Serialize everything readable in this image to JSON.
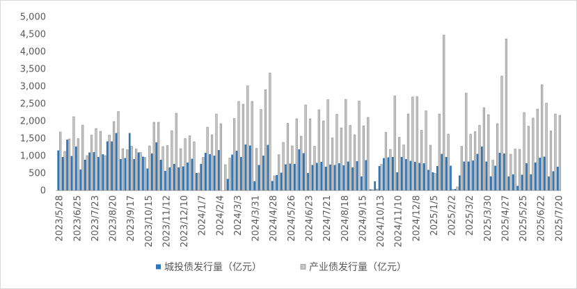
{
  "chart_data": {
    "type": "bar",
    "categories": [
      "2023/5/28",
      "",
      "",
      "",
      "2023/6/25",
      "",
      "",
      "",
      "2023/7/23",
      "",
      "",
      "",
      "2023/8/20",
      "",
      "",
      "",
      "2023/9/17",
      "",
      "",
      "",
      "2023/10/15",
      "",
      "",
      "",
      "2023/11/12",
      "",
      "",
      "",
      "2023/12/10",
      "",
      "",
      "",
      "2024/1/7",
      "",
      "",
      "",
      "2024/2/4",
      "",
      "",
      "",
      "2024/3/3",
      "",
      "",
      "",
      "2024/3/31",
      "",
      "",
      "",
      "2024/4/28",
      "",
      "",
      "",
      "2024/5/26",
      "",
      "",
      "",
      "2024/6/23",
      "",
      "",
      "",
      "2024/7/21",
      "",
      "",
      "",
      "2024/8/18",
      "",
      "",
      "",
      "2024/9/15",
      "",
      "",
      "",
      "2024/10/13",
      "",
      "",
      "",
      "2024/11/10",
      "",
      "",
      "",
      "2024/12/8",
      "",
      "",
      "",
      "2025/1/5",
      "",
      "",
      "",
      "2025/2/2",
      "",
      "",
      "",
      "2025/3/2",
      "",
      "",
      "",
      "2025/3/30",
      "",
      "",
      "",
      "2025/4/27",
      "",
      "",
      "",
      "2025/5/25",
      "",
      "",
      "",
      "2025/6/22",
      "",
      "",
      "",
      "2025/7/20"
    ],
    "series": [
      {
        "name": "城投债发行量（亿元）",
        "color": "#2E75B6",
        "values": [
          1150,
          960,
          1460,
          990,
          1260,
          600,
          880,
          1090,
          1100,
          960,
          1040,
          1410,
          1410,
          1650,
          900,
          930,
          1650,
          900,
          1090,
          970,
          630,
          1060,
          1380,
          880,
          560,
          660,
          760,
          660,
          690,
          800,
          910,
          500,
          760,
          1080,
          1040,
          1000,
          1160,
          0,
          330,
          1030,
          1140,
          960,
          1320,
          1290,
          260,
          730,
          1000,
          1310,
          270,
          440,
          510,
          750,
          770,
          760,
          1180,
          1070,
          500,
          730,
          790,
          820,
          680,
          740,
          730,
          780,
          720,
          830,
          660,
          840,
          400,
          870,
          30,
          260,
          700,
          930,
          950,
          960,
          520,
          960,
          900,
          850,
          820,
          790,
          780,
          590,
          520,
          700,
          1050,
          960,
          710,
          40,
          430,
          830,
          830,
          860,
          1050,
          1260,
          830,
          400,
          710,
          1080,
          1060,
          400,
          460,
          130,
          450,
          780,
          460,
          800,
          940,
          970,
          400,
          550,
          680
        ]
      },
      {
        "name": "产业债发行量（亿元）",
        "color": "#C4C4C4",
        "values": [
          1680,
          1120,
          1480,
          2120,
          1490,
          1880,
          1000,
          1590,
          1780,
          1700,
          1000,
          1590,
          1980,
          2270,
          1200,
          1170,
          1270,
          1190,
          1090,
          950,
          1280,
          1960,
          1960,
          1260,
          1290,
          1720,
          2220,
          1200,
          1490,
          1570,
          1400,
          500,
          950,
          1820,
          1600,
          2200,
          1920,
          740,
          930,
          2070,
          2560,
          2480,
          3010,
          2560,
          1210,
          2330,
          2900,
          3380,
          420,
          1030,
          1380,
          1930,
          1280,
          2060,
          1560,
          2460,
          2060,
          1270,
          2320,
          2000,
          2610,
          1510,
          2190,
          1800,
          2620,
          1870,
          1600,
          2570,
          1860,
          2100,
          20,
          40,
          750,
          1670,
          1180,
          2720,
          1530,
          1310,
          2200,
          2690,
          2700,
          1730,
          2290,
          1300,
          490,
          2200,
          4470,
          1620,
          30,
          100,
          1270,
          2800,
          1620,
          1690,
          1870,
          2380,
          2180,
          870,
          1920,
          3290,
          4360,
          1040,
          1190,
          1180,
          2240,
          1850,
          2080,
          2340,
          3040,
          2510,
          1710,
          2200,
          2160
        ]
      }
    ],
    "ylim": [
      0,
      5000
    ],
    "yticks": [
      0,
      500,
      1000,
      1500,
      2000,
      2500,
      3000,
      3500,
      4000,
      4500,
      5000
    ],
    "ytick_labels": [
      "0",
      "500",
      "1,000",
      "1,500",
      "2,000",
      "2,500",
      "3,000",
      "3,500",
      "4,000",
      "4,500",
      "5,000"
    ],
    "grid": false,
    "legend": "bottom"
  }
}
